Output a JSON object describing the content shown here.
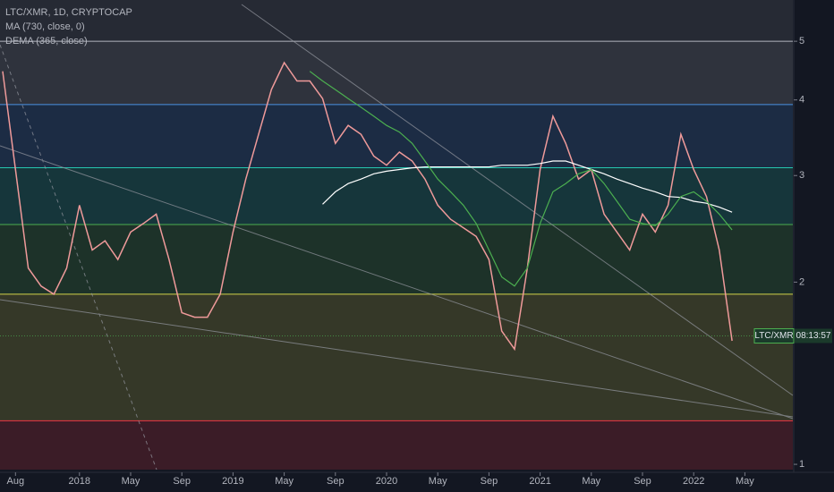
{
  "chart_data": {
    "type": "line",
    "title": "LTC/XMR, 1D, CRYPTOCAP",
    "log_scale": true,
    "ylim": [
      0.98,
      5.85
    ],
    "yticks": [
      1,
      2,
      3,
      4,
      5
    ],
    "x": [
      "2017-07",
      "2017-08",
      "2017-09",
      "2017-10",
      "2017-11",
      "2017-12",
      "2018-01",
      "2018-02",
      "2018-03",
      "2018-04",
      "2018-05",
      "2018-06",
      "2018-07",
      "2018-08",
      "2018-09",
      "2018-10",
      "2018-11",
      "2018-12",
      "2019-01",
      "2019-02",
      "2019-03",
      "2019-04",
      "2019-05",
      "2019-06",
      "2019-07",
      "2019-08",
      "2019-09",
      "2019-10",
      "2019-11",
      "2019-12",
      "2020-01",
      "2020-02",
      "2020-03",
      "2020-04",
      "2020-05",
      "2020-06",
      "2020-07",
      "2020-08",
      "2020-09",
      "2020-10",
      "2020-11",
      "2020-12",
      "2021-01",
      "2021-02",
      "2021-03",
      "2021-04",
      "2021-05",
      "2021-06",
      "2021-07",
      "2021-08",
      "2021-09",
      "2021-10",
      "2021-11",
      "2021-12",
      "2022-01",
      "2022-02",
      "2022-03",
      "2022-04"
    ],
    "xticks": [
      {
        "value": "2017-08",
        "label": "Aug"
      },
      {
        "value": "2018-01",
        "label": "2018"
      },
      {
        "value": "2018-05",
        "label": "May"
      },
      {
        "value": "2018-09",
        "label": "Sep"
      },
      {
        "value": "2019-01",
        "label": "2019"
      },
      {
        "value": "2019-05",
        "label": "May"
      },
      {
        "value": "2019-09",
        "label": "Sep"
      },
      {
        "value": "2020-01",
        "label": "2020"
      },
      {
        "value": "2020-05",
        "label": "May"
      },
      {
        "value": "2020-09",
        "label": "Sep"
      },
      {
        "value": "2021-01",
        "label": "2021"
      },
      {
        "value": "2021-05",
        "label": "May"
      },
      {
        "value": "2021-09",
        "label": "Sep"
      },
      {
        "value": "2022-01",
        "label": "2022"
      },
      {
        "value": "2022-05",
        "label": "May"
      }
    ],
    "series": [
      {
        "name": "LTC/XMR",
        "color": "#ef9a9a",
        "values": [
          4.46,
          3.07,
          2.11,
          1.97,
          1.91,
          2.11,
          2.68,
          2.26,
          2.34,
          2.18,
          2.42,
          2.5,
          2.59,
          2.18,
          1.78,
          1.75,
          1.75,
          1.91,
          2.42,
          2.96,
          3.51,
          4.16,
          4.61,
          4.3,
          4.3,
          4.02,
          3.39,
          3.63,
          3.51,
          3.23,
          3.12,
          3.28,
          3.17,
          2.96,
          2.68,
          2.54,
          2.46,
          2.38,
          2.18,
          1.66,
          1.55,
          2.11,
          3.07,
          3.76,
          3.39,
          2.96,
          3.07,
          2.59,
          2.42,
          2.26,
          2.59,
          2.42,
          2.68,
          3.51,
          3.07,
          2.77,
          2.26,
          1.6
        ]
      },
      {
        "name": "MA (730, close, 0)",
        "color": "#ffffff",
        "values": [
          null,
          null,
          null,
          null,
          null,
          null,
          null,
          null,
          null,
          null,
          null,
          null,
          null,
          null,
          null,
          null,
          null,
          null,
          null,
          null,
          null,
          null,
          null,
          null,
          null,
          2.69,
          2.82,
          2.91,
          2.96,
          3.02,
          3.05,
          3.07,
          3.09,
          3.1,
          3.1,
          3.1,
          3.1,
          3.1,
          3.1,
          3.12,
          3.12,
          3.12,
          3.14,
          3.17,
          3.17,
          3.12,
          3.07,
          3.02,
          2.96,
          2.91,
          2.86,
          2.82,
          2.77,
          2.76,
          2.72,
          2.7,
          2.66,
          2.61
        ]
      },
      {
        "name": "DEMA (365, close)",
        "color": "#4caf50",
        "values": [
          null,
          null,
          null,
          null,
          null,
          null,
          null,
          null,
          null,
          null,
          null,
          null,
          null,
          null,
          null,
          null,
          null,
          null,
          null,
          null,
          null,
          null,
          null,
          null,
          4.46,
          4.3,
          4.16,
          4.02,
          3.89,
          3.76,
          3.63,
          3.54,
          3.39,
          3.17,
          2.96,
          2.82,
          2.68,
          2.5,
          2.26,
          2.04,
          1.97,
          2.11,
          2.5,
          2.82,
          2.91,
          3.02,
          3.07,
          2.91,
          2.72,
          2.54,
          2.5,
          2.48,
          2.59,
          2.77,
          2.82,
          2.72,
          2.59,
          2.44
        ]
      }
    ],
    "levels": [
      {
        "value": 5.0,
        "color": "#b2b5be"
      },
      {
        "value": 3.93,
        "color": "#4a90e2"
      },
      {
        "value": 3.09,
        "color": "#26c6b0"
      },
      {
        "value": 2.49,
        "color": "#4caf50"
      },
      {
        "value": 1.91,
        "color": "#d4d44a"
      },
      {
        "value": 1.18,
        "color": "#f23645"
      }
    ],
    "last_price": 1.63,
    "countdown": "08:13:57"
  }
}
